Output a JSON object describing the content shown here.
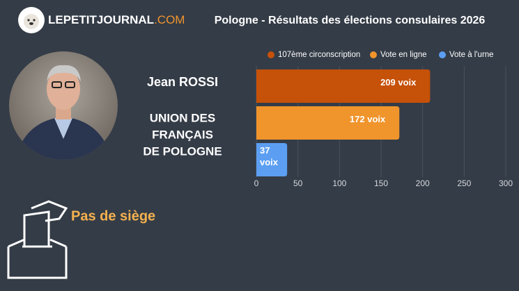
{
  "header": {
    "logo": "LEPETITJOURNAL",
    "logo_suffix": ".COM",
    "title": "Pologne - Résultats des élections consulaires 2026"
  },
  "candidate": {
    "name": "Jean ROSSI",
    "list": [
      "UNION DES",
      "FRANÇAIS",
      "DE POLOGNE"
    ]
  },
  "result": "Pas de siège",
  "chart_data": {
    "type": "bar",
    "orientation": "horizontal",
    "series": [
      {
        "name": "107ème circonscription",
        "color": "#c65109",
        "values": [
          209
        ],
        "value_labels": [
          "209 voix"
        ]
      },
      {
        "name": "Vote en ligne",
        "color": "#f0942c",
        "values": [
          172
        ],
        "value_labels": [
          "172 voix"
        ]
      },
      {
        "name": "Vote à l'urne",
        "color": "#5c9ff2",
        "values": [
          37
        ],
        "value_labels": [
          "37 voix"
        ]
      }
    ],
    "xlim": [
      0,
      300
    ],
    "xticks": [
      0,
      50,
      100,
      150,
      200,
      250,
      300
    ],
    "grid": true,
    "legend": "top"
  }
}
